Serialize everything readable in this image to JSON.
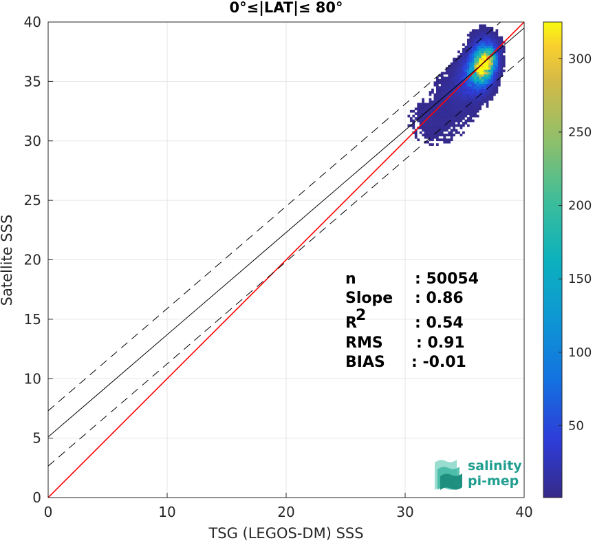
{
  "chart_data": {
    "type": "heatmap",
    "title": "0°≤|LAT|≤ 80°",
    "xlabel": "TSG (LEGOS-DM) SSS",
    "ylabel": "Satellite SSS",
    "xlim": [
      0,
      40
    ],
    "ylim": [
      0,
      40
    ],
    "xticks": [
      "0",
      "10",
      "20",
      "30",
      "40"
    ],
    "yticks": [
      "0",
      "5",
      "10",
      "15",
      "20",
      "25",
      "30",
      "35",
      "40"
    ],
    "grid": true,
    "colorbar": {
      "range": [
        1,
        325
      ],
      "ticks": [
        "50",
        "100",
        "150",
        "200",
        "250",
        "300"
      ],
      "colormap": "parula"
    },
    "lines": [
      {
        "style": "identity",
        "color": "#ff0000",
        "slope": 1.0,
        "intercept": 0.0
      },
      {
        "style": "regression",
        "color": "#000000",
        "slope": 0.86,
        "intercept": 5.1
      },
      {
        "style": "regression-upper",
        "color": "#000000",
        "dash": true,
        "slope": 0.86,
        "intercept": 7.3
      },
      {
        "style": "regression-lower",
        "color": "#000000",
        "dash": true,
        "slope": 0.86,
        "intercept": 2.65
      }
    ],
    "density_clusters": [
      {
        "x": 36.4,
        "y": 36.2,
        "sx": 0.55,
        "sy": 0.8,
        "peak": 325
      },
      {
        "x": 37.0,
        "y": 36.9,
        "sx": 0.4,
        "sy": 0.6,
        "peak": 150
      },
      {
        "x": 35.8,
        "y": 35.4,
        "sx": 0.8,
        "sy": 1.0,
        "peak": 70
      },
      {
        "x": 36.6,
        "y": 37.8,
        "sx": 0.7,
        "sy": 0.8,
        "peak": 35
      },
      {
        "x": 34.5,
        "y": 34.0,
        "sx": 1.2,
        "sy": 1.2,
        "peak": 14
      },
      {
        "x": 32.5,
        "y": 31.5,
        "sx": 1.6,
        "sy": 1.3,
        "peak": 7
      }
    ],
    "stats": [
      {
        "label": "n",
        "value": ": 50054"
      },
      {
        "label": "Slope",
        "value": ": 0.86"
      },
      {
        "label": "R",
        "sup": "2",
        "value": ": 0.54"
      },
      {
        "label": "RMS",
        "value": ": 0.91"
      },
      {
        "label": "BIAS",
        "value": ": -0.01"
      }
    ]
  },
  "logo": {
    "line1": "salinity",
    "line2": "pi-mep"
  }
}
